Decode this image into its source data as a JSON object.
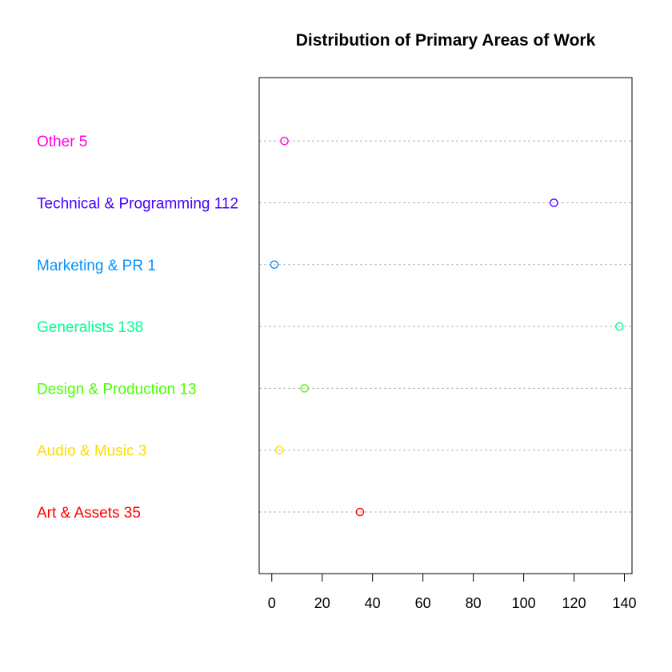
{
  "chart_data": {
    "type": "scatter",
    "title": "Distribution of Primary Areas of Work",
    "xlabel": "",
    "ylabel": "",
    "xlim": [
      -5,
      143
    ],
    "x_ticks": [
      0,
      20,
      40,
      60,
      80,
      100,
      120,
      140
    ],
    "grid": false,
    "categories": [
      {
        "label": "Art & Assets 35",
        "value": 35,
        "color": "#FF0000"
      },
      {
        "label": "Audio & Music 3",
        "value": 3,
        "color": "#FFDB00"
      },
      {
        "label": "Design & Production 13",
        "value": 13,
        "color": "#49FF00"
      },
      {
        "label": "Generalists 138",
        "value": 138,
        "color": "#00FF92"
      },
      {
        "label": "Marketing & PR 1",
        "value": 1,
        "color": "#0092FF"
      },
      {
        "label": "Technical & Programming 112",
        "value": 112,
        "color": "#4900FF"
      },
      {
        "label": "Other 5",
        "value": 5,
        "color": "#FF00DB"
      }
    ]
  }
}
